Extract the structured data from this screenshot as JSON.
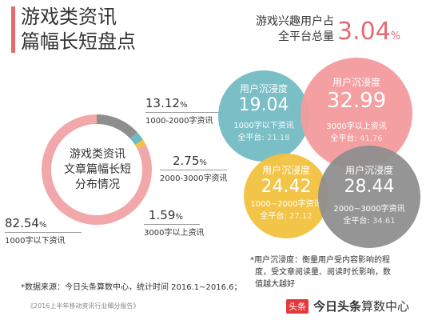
{
  "header": {
    "title_line1": "游戏类资讯",
    "title_line2": "篇幅长短盘点",
    "stat_label_line1": "游戏兴趣用户占",
    "stat_label_line2": "全平台总量",
    "stat_value": "3.04",
    "stat_unit": "%"
  },
  "donut": {
    "center_line1": "游戏类资讯",
    "center_line2": "文章篇幅长短",
    "center_line3": "分布情况"
  },
  "chart_data": {
    "type": "pie",
    "categories": [
      "1000字以下资讯",
      "1000-2000字资讯",
      "2000-3000字资讯",
      "3000字以上资讯"
    ],
    "values": [
      82.54,
      13.12,
      2.75,
      1.59
    ],
    "value_labels": [
      "82.54",
      "13.12",
      "2.75",
      "1.59"
    ],
    "unit": "%",
    "colors": [
      "#f2a8aa",
      "#8e8e8e",
      "#6fb9c2",
      "#f2c240"
    ]
  },
  "bubbles": [
    {
      "label": "用户沉浸度",
      "value": "19.04",
      "sub": "1000字以下资讯",
      "all_label": "全平台:",
      "all_value": "21.18",
      "color": "#6fb9c2"
    },
    {
      "label": "用户沉浸度",
      "value": "32.99",
      "sub": "3000字以上资讯",
      "all_label": "全平台:",
      "all_value": "41.76",
      "color": "#f49b9e"
    },
    {
      "label": "用户沉浸度",
      "value": "24.42",
      "sub": "1000~2000字资讯",
      "all_label": "全平台:",
      "all_value": "27.12",
      "color": "#f2c240"
    },
    {
      "label": "用户沉浸度",
      "value": "28.44",
      "sub": "2000~3000字资讯",
      "all_label": "全平台:",
      "all_value": "34.61",
      "color": "#8e8e8e"
    }
  ],
  "notes": {
    "immersion_line1": "*用户沉浸度：衡量用户受内容影响的程",
    "immersion_line2": "度，受文章阅读量、阅读时长影响，数",
    "immersion_line3": "值越大越好",
    "source": "*数据来源：今日头条算数中心，统计时间 2016.1~2016.6；",
    "report": "《2016上半年移动资讯行业细分报告》"
  },
  "logo": {
    "badge": "头条",
    "name_bold": "今日头条",
    "name_regular": "算数中心"
  }
}
